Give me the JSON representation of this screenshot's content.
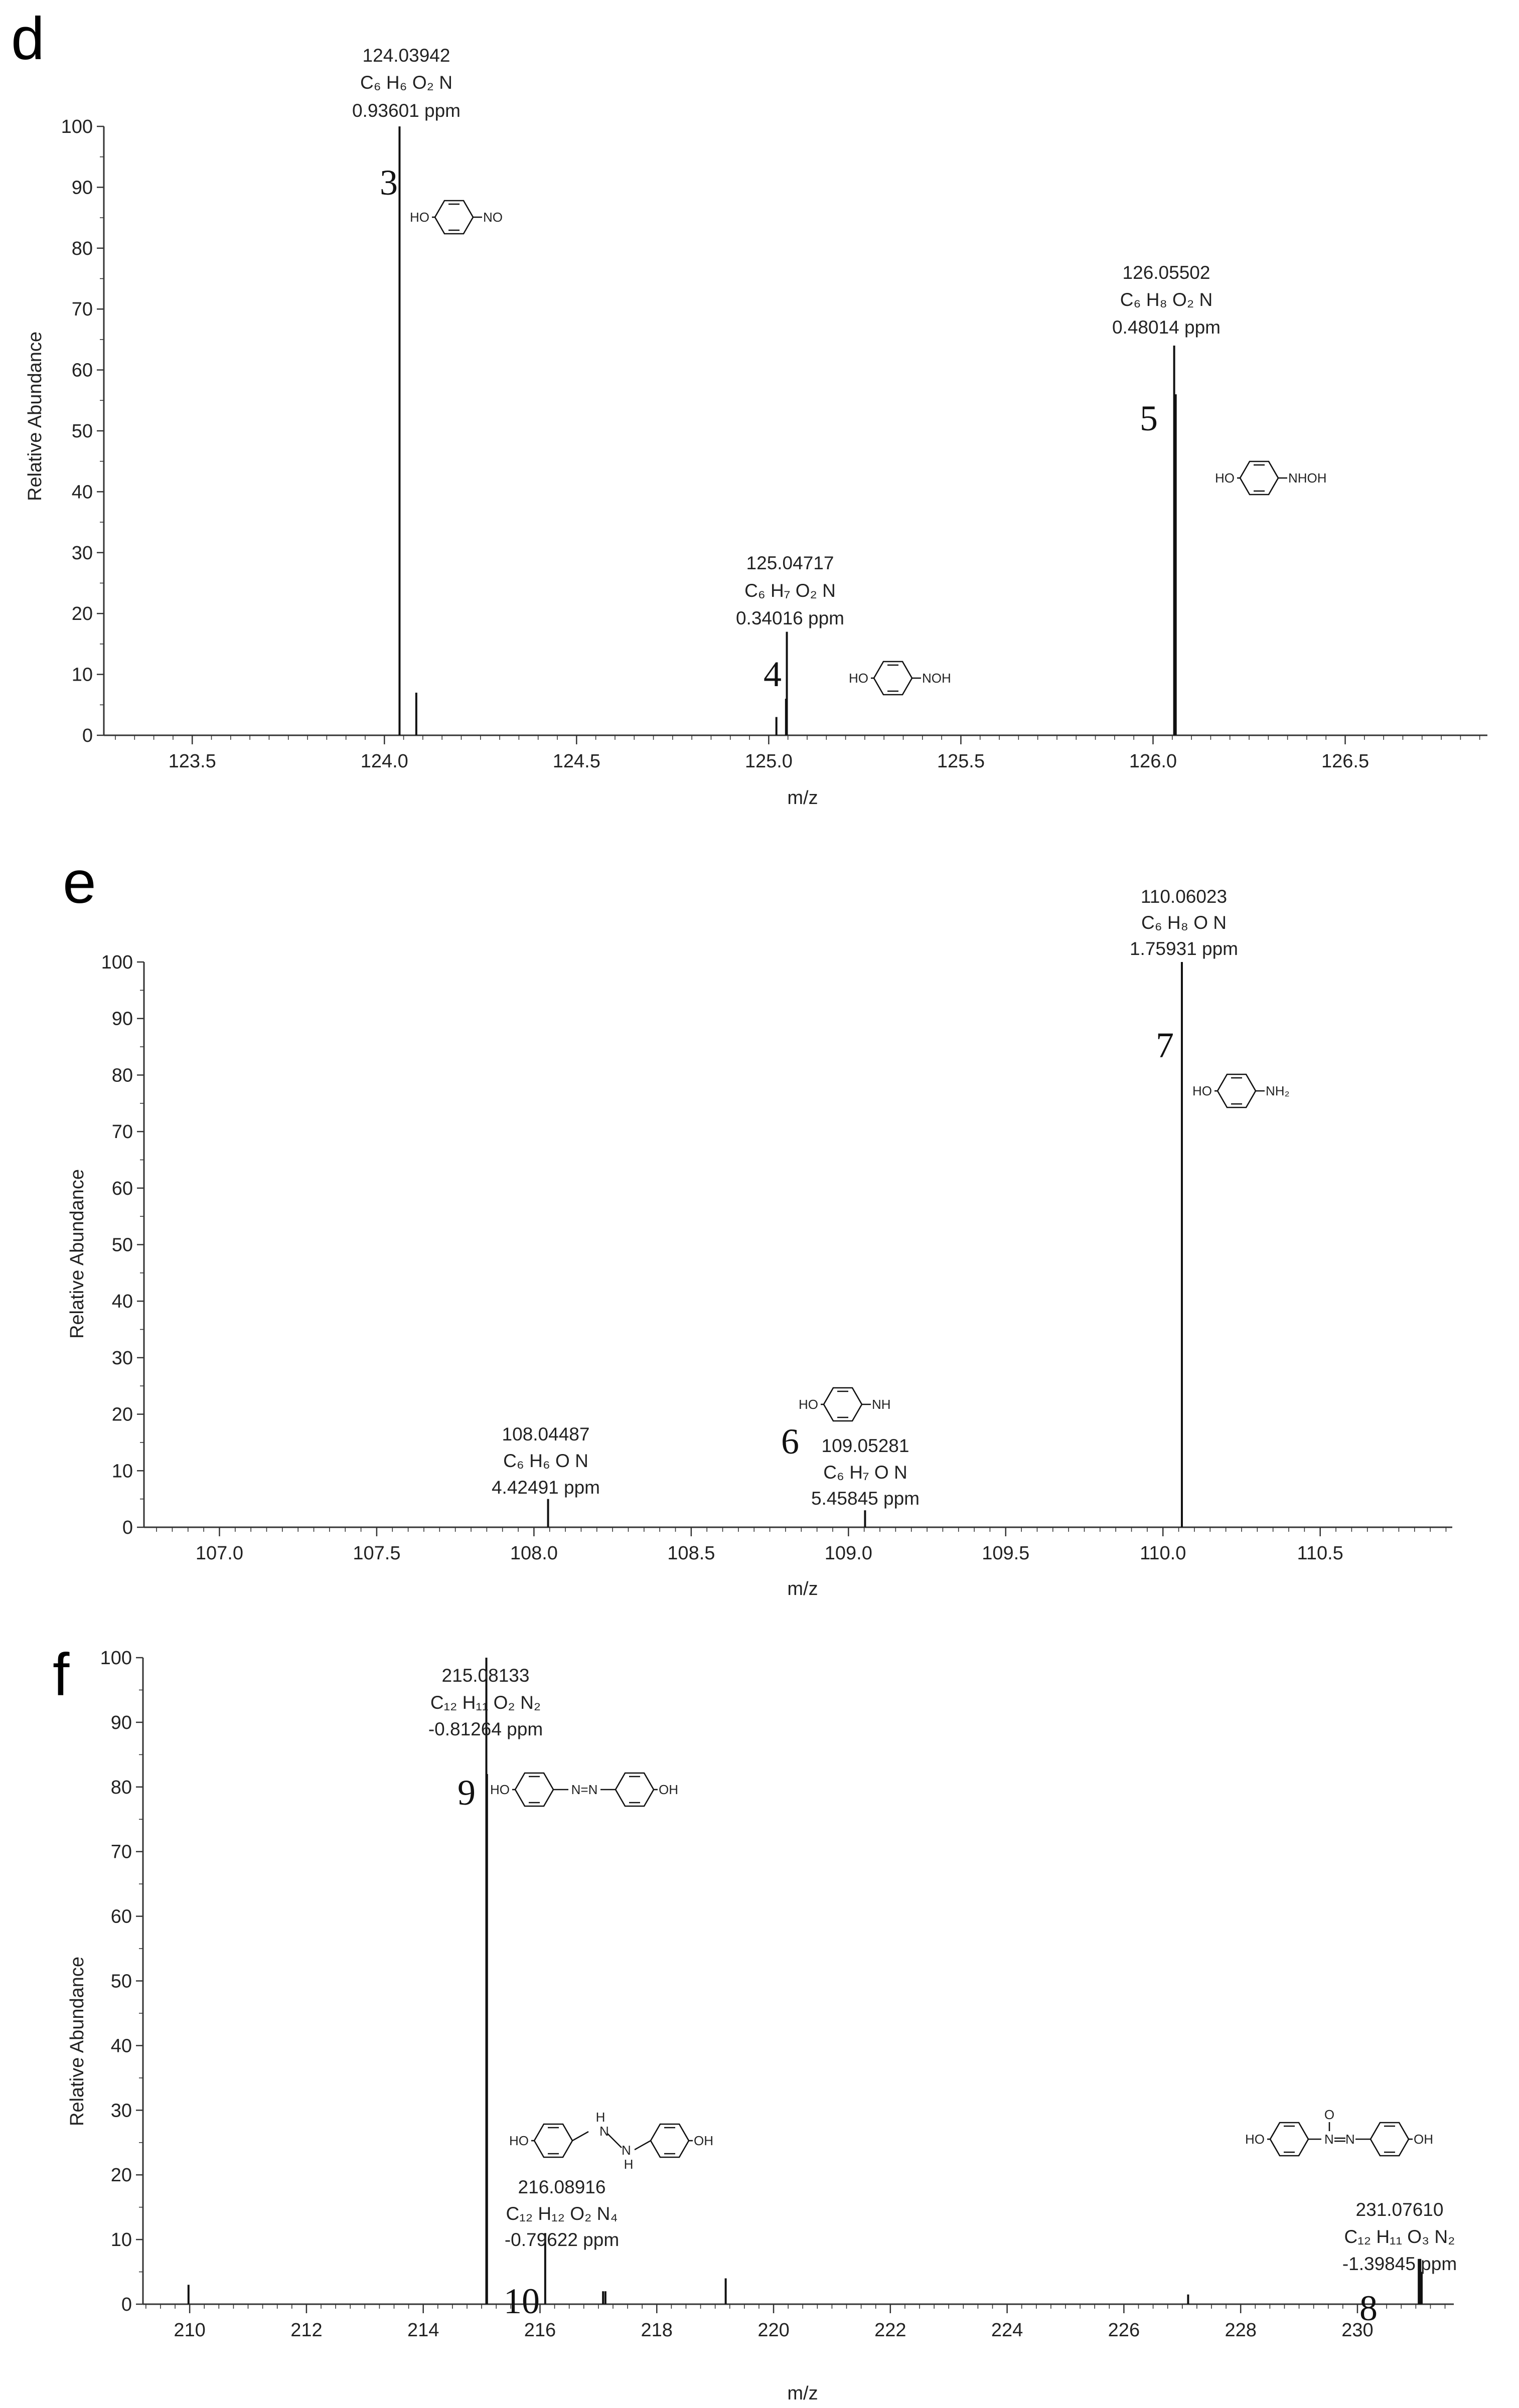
{
  "chart_data": [
    {
      "type": "bar",
      "panel_label": "d",
      "xlabel": "m/z",
      "ylabel": "Relative Abundance",
      "xlim": [
        123.27,
        126.87
      ],
      "ylim": [
        0,
        100
      ],
      "x_ticks": [
        123.5,
        124.0,
        124.5,
        125.0,
        125.5,
        126.0,
        126.5
      ],
      "x_tick_labels": [
        "123.5",
        "124.0",
        "124.5",
        "125.0",
        "125.5",
        "126.0",
        "126.5"
      ],
      "y_ticks": [
        0,
        10,
        20,
        30,
        40,
        50,
        60,
        70,
        80,
        90,
        100
      ],
      "minor_step": 0.05,
      "peaks": [
        {
          "x": 124.0394,
          "y": 100
        },
        {
          "x": 124.083,
          "y": 7
        },
        {
          "x": 125.02,
          "y": 3
        },
        {
          "x": 125.0472,
          "y": 17
        },
        {
          "x": 125.045,
          "y": 6
        },
        {
          "x": 126.055,
          "y": 64
        },
        {
          "x": 126.059,
          "y": 56
        }
      ],
      "annotations": [
        {
          "peak_x": 124.0394,
          "mz": "124.03942",
          "formula": "C₆ H₆ O₂ N",
          "ppm": "0.93601 ppm",
          "number": "3"
        },
        {
          "peak_x": 125.0472,
          "mz": "125.04717",
          "formula": "C₆ H₇ O₂ N",
          "ppm": "0.34016 ppm",
          "number": "4"
        },
        {
          "peak_x": 126.055,
          "mz": "126.05502",
          "formula": "C₆ H₈ O₂ N",
          "ppm": "0.48014 ppm",
          "number": "5"
        }
      ],
      "structures": [
        {
          "left": "HO",
          "right": "NO"
        },
        {
          "left": "HO",
          "right": "NOH"
        },
        {
          "left": "HO",
          "right": "NHOH"
        }
      ]
    },
    {
      "type": "bar",
      "panel_label": "e",
      "xlabel": "m/z",
      "ylabel": "Relative Abundance",
      "xlim": [
        106.76,
        110.92
      ],
      "ylim": [
        0,
        100
      ],
      "x_ticks": [
        107.0,
        107.5,
        108.0,
        108.5,
        109.0,
        109.5,
        110.0,
        110.5
      ],
      "x_tick_labels": [
        "107.0",
        "107.5",
        "108.0",
        "108.5",
        "109.0",
        "109.5",
        "110.0",
        "110.5"
      ],
      "y_ticks": [
        0,
        10,
        20,
        30,
        40,
        50,
        60,
        70,
        80,
        90,
        100
      ],
      "minor_step": 0.05,
      "peaks": [
        {
          "x": 108.0449,
          "y": 5
        },
        {
          "x": 109.0528,
          "y": 3
        },
        {
          "x": 110.0602,
          "y": 100
        }
      ],
      "annotations": [
        {
          "peak_x": 108.0449,
          "mz": "108.04487",
          "formula": "C₆ H₆ O N",
          "ppm": "4.42491 ppm",
          "number": ""
        },
        {
          "peak_x": 109.0528,
          "mz": "109.05281",
          "formula": "C₆ H₇ O N",
          "ppm": "5.45845 ppm",
          "number": "6"
        },
        {
          "peak_x": 110.0602,
          "mz": "110.06023",
          "formula": "C₆ H₈ O N",
          "ppm": "1.75931 ppm",
          "number": "7"
        }
      ],
      "structures": [
        {
          "left": "HO",
          "right": "NH"
        },
        {
          "left": "HO",
          "right": "NH₂"
        }
      ]
    },
    {
      "type": "bar",
      "panel_label": "f",
      "xlabel": "m/z",
      "ylabel": "Relative Abundance",
      "xlim": [
        209.2,
        231.65
      ],
      "ylim": [
        0,
        100
      ],
      "x_ticks": [
        210,
        212,
        214,
        216,
        218,
        220,
        222,
        224,
        226,
        228,
        230
      ],
      "x_tick_labels": [
        "210",
        "212",
        "214",
        "216",
        "218",
        "220",
        "222",
        "224",
        "226",
        "228",
        "230"
      ],
      "y_ticks": [
        0,
        10,
        20,
        30,
        40,
        50,
        60,
        70,
        80,
        90,
        100
      ],
      "minor_step": 0.25,
      "peaks": [
        {
          "x": 209.98,
          "y": 3
        },
        {
          "x": 215.081,
          "y": 100
        },
        {
          "x": 215.092,
          "y": 82
        },
        {
          "x": 216.089,
          "y": 11
        },
        {
          "x": 217.08,
          "y": 2
        },
        {
          "x": 217.12,
          "y": 2
        },
        {
          "x": 219.18,
          "y": 4
        },
        {
          "x": 227.1,
          "y": 1.5
        },
        {
          "x": 231.05,
          "y": 7
        },
        {
          "x": 231.076,
          "y": 7
        },
        {
          "x": 231.1,
          "y": 5
        }
      ],
      "annotations": [
        {
          "peak_x": 215.081,
          "mz": "215.08133",
          "formula": "C₁₂ H₁₁ O₂ N₂",
          "ppm": "-0.81264 ppm",
          "number": "9"
        },
        {
          "peak_x": 216.089,
          "mz": "216.08916",
          "formula": "C₁₂ H₁₂ O₂ N₄",
          "ppm": "-0.79622 ppm",
          "number": "10"
        },
        {
          "peak_x": 231.076,
          "mz": "231.07610",
          "formula": "C₁₂ H₁₁ O₃ N₂",
          "ppm": "-1.39845 ppm",
          "number": "8"
        }
      ],
      "structures": [
        {
          "left": "HO",
          "mid": "N=N",
          "right": "OH"
        },
        {
          "left": "HO",
          "mid": "HN-NH",
          "top": "H",
          "bottom": "H",
          "right": "OH"
        },
        {
          "left": "HO",
          "mid": "N(O)=N",
          "top": "O",
          "right": "OH"
        }
      ]
    }
  ]
}
